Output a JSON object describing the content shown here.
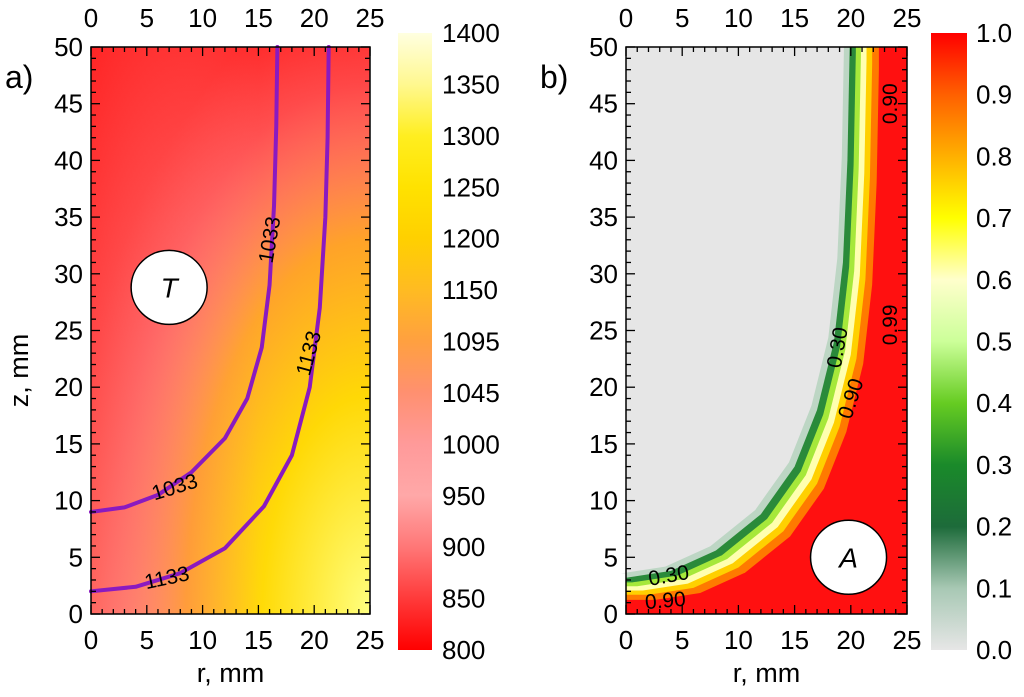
{
  "chart_data": [
    {
      "type": "heatmap",
      "panel_label": "a)",
      "variable_label": "T",
      "xlabel": "r, mm",
      "ylabel": "z, mm",
      "xlim": [
        0,
        25
      ],
      "ylim": [
        0,
        50
      ],
      "x_ticks": [
        "0",
        "5",
        "10",
        "15",
        "20",
        "25"
      ],
      "y_ticks": [
        "0",
        "5",
        "10",
        "15",
        "20",
        "25",
        "30",
        "35",
        "40",
        "45",
        "50"
      ],
      "colorbar": {
        "range": [
          800,
          1400
        ],
        "tick_labels": [
          "800",
          "850",
          "900",
          "950",
          "1000",
          "1045",
          "1095",
          "1150",
          "1200",
          "1250",
          "1300",
          "1350",
          "1400"
        ],
        "colors": [
          "#ff0000",
          "#ff3a3a",
          "#ff7777",
          "#ffa8a8",
          "#ff9a9a",
          "#ff9070",
          "#ffa040",
          "#ffbb22",
          "#ffd000",
          "#ffe200",
          "#ffee20",
          "#fff890",
          "#ffffe0"
        ]
      },
      "contours": [
        {
          "level": "1033",
          "points": [
            [
              0,
              9
            ],
            [
              3,
              9.4
            ],
            [
              6,
              10.5
            ],
            [
              9,
              12.5
            ],
            [
              12,
              15.5
            ],
            [
              14,
              19
            ],
            [
              15.3,
              23.5
            ],
            [
              16,
              29
            ],
            [
              16.4,
              36
            ],
            [
              16.6,
              43
            ],
            [
              16.7,
              50
            ]
          ]
        },
        {
          "level": "1133",
          "points": [
            [
              0,
              2
            ],
            [
              4,
              2.4
            ],
            [
              8,
              3.6
            ],
            [
              12,
              5.8
            ],
            [
              15.5,
              9.5
            ],
            [
              18,
              14
            ],
            [
              19.6,
              20
            ],
            [
              20.5,
              27
            ],
            [
              21,
              35
            ],
            [
              21.2,
              42
            ],
            [
              21.3,
              50
            ]
          ]
        }
      ],
      "contour_labels": [
        {
          "text": "1033",
          "x": 7.5,
          "y": 11.2,
          "angle": -17
        },
        {
          "text": "1133",
          "x": 6.8,
          "y": 3.2,
          "angle": -12
        },
        {
          "text": "1033",
          "x": 16.0,
          "y": 33.0,
          "angle": -80
        },
        {
          "text": "1133",
          "x": 19.5,
          "y": 23.0,
          "angle": -75
        }
      ],
      "contour_color": "#8a1ac0"
    },
    {
      "type": "heatmap",
      "panel_label": "b)",
      "variable_label": "A",
      "xlabel": "r, mm",
      "ylabel": "",
      "xlim": [
        0,
        25
      ],
      "ylim": [
        0,
        50
      ],
      "x_ticks": [
        "0",
        "5",
        "10",
        "15",
        "20",
        "25"
      ],
      "y_ticks": [
        "0",
        "5",
        "10",
        "15",
        "20",
        "25",
        "30",
        "35",
        "40",
        "45",
        "50"
      ],
      "colorbar": {
        "range": [
          0.0,
          1.0
        ],
        "tick_labels": [
          "0.0",
          "0.1",
          "0.2",
          "0.3",
          "0.4",
          "0.5",
          "0.6",
          "0.7",
          "0.8",
          "0.9",
          "1.0"
        ],
        "colors": [
          "#e6e6e6",
          "#a8c8b4",
          "#1d6b3a",
          "#1a8a2a",
          "#66cc22",
          "#ccff99",
          "#ffffcc",
          "#ffff00",
          "#ffb000",
          "#ff6000",
          "#ff0000"
        ]
      },
      "boundary": [
        [
          0,
          3.2
        ],
        [
          4,
          3.8
        ],
        [
          8,
          5.6
        ],
        [
          12,
          8.8
        ],
        [
          15,
          13
        ],
        [
          17,
          18
        ],
        [
          18.5,
          24
        ],
        [
          19.3,
          31
        ],
        [
          19.7,
          40
        ],
        [
          19.9,
          50
        ]
      ],
      "contour_labels": [
        {
          "text": "0.30",
          "x": 3.8,
          "y": 3.4,
          "angle": -10
        },
        {
          "text": "0.90",
          "x": 3.5,
          "y": 1.2,
          "angle": -5
        },
        {
          "text": "0.30",
          "x": 18.8,
          "y": 23.5,
          "angle": -80
        },
        {
          "text": "0.90",
          "x": 20.0,
          "y": 19.0,
          "angle": -72
        },
        {
          "text": "0.99",
          "x": 23.5,
          "y": 25.5,
          "angle": -90
        },
        {
          "text": "0.90",
          "x": 23.5,
          "y": 45.0,
          "angle": -90
        }
      ]
    }
  ]
}
